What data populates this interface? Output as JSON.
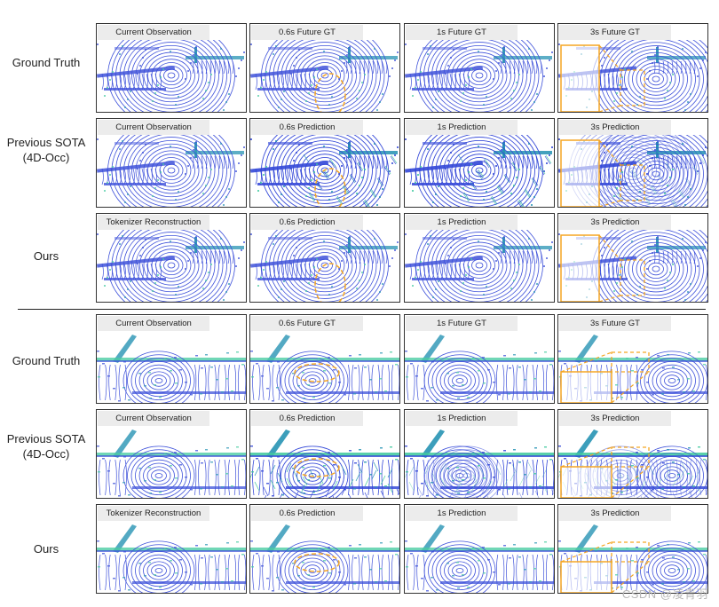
{
  "figure": {
    "sections": [
      {
        "scene": "intersection",
        "rows": [
          {
            "label": "Ground Truth",
            "panels": [
              "Current Observation",
              "0.6s Future GT",
              "1s Future GT",
              "3s Future GT"
            ]
          },
          {
            "label": "Previous SOTA\n(4D-Occ)",
            "panels": [
              "Current Observation",
              "0.6s Prediction",
              "1s Prediction",
              "3s Prediction"
            ]
          },
          {
            "label": "Ours",
            "panels": [
              "Tokenizer Reconstruction",
              "0.6s Prediction",
              "1s Prediction",
              "3s Prediction"
            ]
          }
        ]
      },
      {
        "scene": "street",
        "rows": [
          {
            "label": "Ground Truth",
            "panels": [
              "Current Observation",
              "0.6s Future GT",
              "1s Future GT",
              "3s Future GT"
            ]
          },
          {
            "label": "Previous SOTA\n(4D-Occ)",
            "panels": [
              "Current Observation",
              "0.6s Prediction",
              "1s Prediction",
              "3s Prediction"
            ]
          },
          {
            "label": "Ours",
            "panels": [
              "Tokenizer Reconstruction",
              "0.6s Prediction",
              "1s Prediction",
              "3s Prediction"
            ]
          }
        ]
      }
    ],
    "annotations": {
      "highlight_color": "#f5a623",
      "point_colors": [
        "#2a3fd6",
        "#1e8fb0",
        "#38c79a"
      ]
    },
    "watermark": "CSDN @凌青羽"
  }
}
